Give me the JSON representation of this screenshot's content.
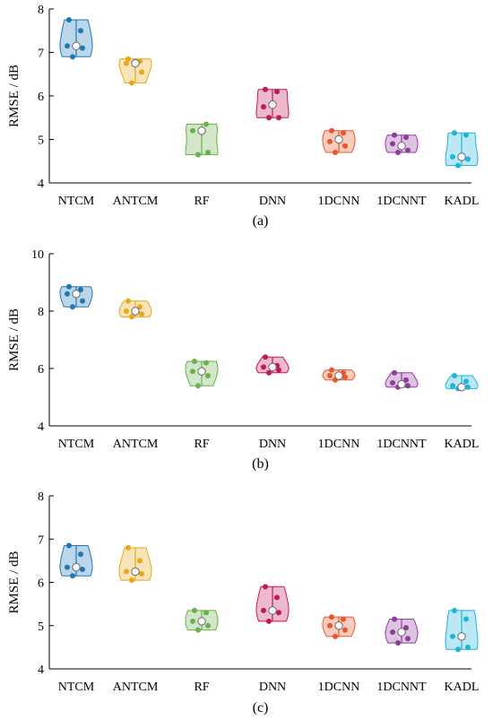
{
  "colors": {
    "NTCM": "#1f77b4",
    "ANTCM": "#e6a817",
    "RF": "#6ab04c",
    "DNN": "#c2185b",
    "1DCNN": "#e8572a",
    "1DCNNT": "#8e3b9b",
    "KADL": "#1eb3d8"
  },
  "chart_data": [
    {
      "type": "violin",
      "caption": "(a)",
      "ylabel": "RMSE / dB",
      "ylim": [
        4,
        8
      ],
      "yticks": [
        4,
        5,
        6,
        7,
        8
      ],
      "categories": [
        "NTCM",
        "ANTCM",
        "RF",
        "DNN",
        "1DCNN",
        "1DCNNT",
        "KADL"
      ],
      "points": [
        [
          6.9,
          7.1,
          7.15,
          7.5,
          7.75
        ],
        [
          6.3,
          6.55,
          6.75,
          6.8,
          6.85
        ],
        [
          4.65,
          4.7,
          5.2,
          5.35
        ],
        [
          5.5,
          5.5,
          5.75,
          6.1,
          6.15
        ],
        [
          4.7,
          4.85,
          4.95,
          5.15,
          5.2
        ],
        [
          4.7,
          4.75,
          4.9,
          5.05,
          5.1
        ],
        [
          4.4,
          4.55,
          4.6,
          5.1,
          5.15
        ]
      ],
      "medians": [
        7.15,
        6.75,
        5.2,
        5.8,
        5.0,
        4.85,
        4.6
      ]
    },
    {
      "type": "violin",
      "caption": "(b)",
      "ylabel": "RMSE / dB",
      "ylim": [
        4,
        10
      ],
      "yticks": [
        4,
        6,
        8,
        10
      ],
      "categories": [
        "NTCM",
        "ANTCM",
        "RF",
        "DNN",
        "1DCNN",
        "1DCNNT",
        "KADL"
      ],
      "points": [
        [
          8.15,
          8.35,
          8.6,
          8.75,
          8.85
        ],
        [
          7.8,
          7.9,
          8.0,
          8.15,
          8.35
        ],
        [
          5.4,
          5.75,
          5.9,
          6.2,
          6.25
        ],
        [
          5.85,
          5.95,
          6.05,
          6.1,
          6.4
        ],
        [
          5.6,
          5.7,
          5.75,
          5.85,
          5.95
        ],
        [
          5.35,
          5.4,
          5.5,
          5.6,
          5.85
        ],
        [
          5.3,
          5.35,
          5.4,
          5.55,
          5.75
        ]
      ],
      "medians": [
        8.6,
        8.0,
        5.9,
        6.05,
        5.75,
        5.45,
        5.35
      ]
    },
    {
      "type": "violin",
      "caption": "(c)",
      "ylabel": "RMSE / dB",
      "ylim": [
        4,
        8
      ],
      "yticks": [
        4,
        5,
        6,
        7,
        8
      ],
      "categories": [
        "NTCM",
        "ANTCM",
        "RF",
        "DNN",
        "1DCNN",
        "1DCNNT",
        "KADL"
      ],
      "points": [
        [
          6.15,
          6.3,
          6.35,
          6.65,
          6.85
        ],
        [
          6.05,
          6.2,
          6.25,
          6.5,
          6.8
        ],
        [
          4.9,
          5.0,
          5.1,
          5.3,
          5.35
        ],
        [
          5.1,
          5.3,
          5.35,
          5.65,
          5.9
        ],
        [
          4.75,
          4.9,
          5.0,
          5.15,
          5.2
        ],
        [
          4.6,
          4.7,
          4.85,
          4.95,
          5.15
        ],
        [
          4.45,
          4.5,
          4.75,
          5.15,
          5.35
        ]
      ],
      "medians": [
        6.35,
        6.25,
        5.1,
        5.35,
        5.0,
        4.85,
        4.75
      ]
    }
  ]
}
